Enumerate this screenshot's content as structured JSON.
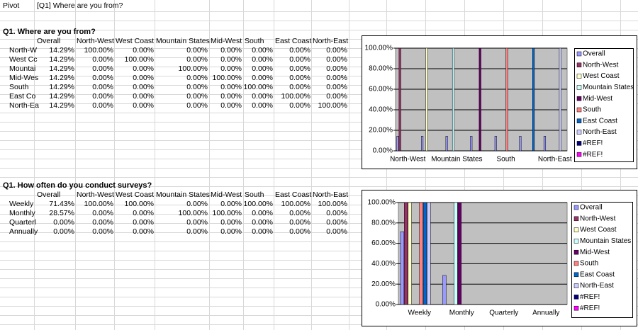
{
  "header": {
    "cells": [
      "Pivot",
      "[Q1] Where are you from?"
    ]
  },
  "tables": [
    {
      "title": "Q1. Where are you from?",
      "columns": [
        "Overall",
        "North-West",
        "West Coast",
        "Mountain States",
        "Mid-West",
        "South",
        "East Coast",
        "North-East"
      ],
      "rows": [
        {
          "label": "North-W",
          "cells": [
            "14.29%",
            "100.00%",
            "0.00%",
            "0.00%",
            "0.00%",
            "0.00%",
            "0.00%",
            "0.00%"
          ]
        },
        {
          "label": "West Cc",
          "cells": [
            "14.29%",
            "0.00%",
            "100.00%",
            "0.00%",
            "0.00%",
            "0.00%",
            "0.00%",
            "0.00%"
          ]
        },
        {
          "label": "Mountai",
          "cells": [
            "14.29%",
            "0.00%",
            "0.00%",
            "100.00%",
            "0.00%",
            "0.00%",
            "0.00%",
            "0.00%"
          ]
        },
        {
          "label": "Mid-Wes",
          "cells": [
            "14.29%",
            "0.00%",
            "0.00%",
            "0.00%",
            "100.00%",
            "0.00%",
            "0.00%",
            "0.00%"
          ]
        },
        {
          "label": "South",
          "cells": [
            "14.29%",
            "0.00%",
            "0.00%",
            "0.00%",
            "0.00%",
            "100.00%",
            "0.00%",
            "0.00%"
          ]
        },
        {
          "label": "East Co",
          "cells": [
            "14.29%",
            "0.00%",
            "0.00%",
            "0.00%",
            "0.00%",
            "0.00%",
            "100.00%",
            "0.00%"
          ]
        },
        {
          "label": "North-Ea",
          "cells": [
            "14.29%",
            "0.00%",
            "0.00%",
            "0.00%",
            "0.00%",
            "0.00%",
            "0.00%",
            "100.00%"
          ]
        }
      ]
    },
    {
      "title": "Q1. How often do you conduct surveys?",
      "columns": [
        "Overall",
        "North-West",
        "West Coast",
        "Mountain States",
        "Mid-West",
        "South",
        "East Coast",
        "North-East"
      ],
      "rows": [
        {
          "label": "Weekly",
          "cells": [
            "71.43%",
            "100.00%",
            "100.00%",
            "0.00%",
            "0.00%",
            "100.00%",
            "100.00%",
            "100.00%"
          ]
        },
        {
          "label": "Monthly",
          "cells": [
            "28.57%",
            "0.00%",
            "0.00%",
            "100.00%",
            "100.00%",
            "0.00%",
            "0.00%",
            "0.00%"
          ]
        },
        {
          "label": "Quarterl",
          "cells": [
            "0.00%",
            "0.00%",
            "0.00%",
            "0.00%",
            "0.00%",
            "0.00%",
            "0.00%",
            "0.00%"
          ]
        },
        {
          "label": "Annually",
          "cells": [
            "0.00%",
            "0.00%",
            "0.00%",
            "0.00%",
            "0.00%",
            "0.00%",
            "0.00%",
            "0.00%"
          ]
        }
      ]
    }
  ],
  "chart_data": [
    {
      "type": "bar",
      "categories": [
        "North-West",
        null,
        "Mountain States",
        null,
        "South",
        null,
        "North-East"
      ],
      "ylim": [
        0,
        100
      ],
      "yticks": [
        {
          "value": 0,
          "label": "0.00%"
        },
        {
          "value": 20,
          "label": "20.00%"
        },
        {
          "value": 40,
          "label": "40.00%"
        },
        {
          "value": 60,
          "label": "60.00%"
        },
        {
          "value": 80,
          "label": "80.00%"
        },
        {
          "value": 100,
          "label": "100.00%"
        }
      ],
      "grid": true,
      "legend": "right",
      "series": [
        {
          "name": "Overall",
          "color": "#9999ff",
          "values": [
            14.29,
            14.29,
            14.29,
            14.29,
            14.29,
            14.29,
            14.29
          ]
        },
        {
          "name": "North-West",
          "color": "#993366",
          "values": [
            100,
            0,
            0,
            0,
            0,
            0,
            0
          ]
        },
        {
          "name": "West Coast",
          "color": "#ffffcc",
          "values": [
            0,
            100,
            0,
            0,
            0,
            0,
            0
          ]
        },
        {
          "name": "Mountain States",
          "color": "#ccffff",
          "values": [
            0,
            0,
            100,
            0,
            0,
            0,
            0
          ]
        },
        {
          "name": "Mid-West",
          "color": "#660066",
          "values": [
            0,
            0,
            0,
            100,
            0,
            0,
            0
          ]
        },
        {
          "name": "South",
          "color": "#ff8080",
          "values": [
            0,
            0,
            0,
            0,
            100,
            0,
            0
          ]
        },
        {
          "name": "East Coast",
          "color": "#0066cc",
          "values": [
            0,
            0,
            0,
            0,
            0,
            100,
            0
          ]
        },
        {
          "name": "North-East",
          "color": "#ccccff",
          "values": [
            0,
            0,
            0,
            0,
            0,
            0,
            100
          ]
        },
        {
          "name": "#REF!",
          "color": "#000080",
          "values": [
            null,
            null,
            null,
            null,
            null,
            null,
            null
          ]
        },
        {
          "name": "#REF!",
          "color": "#ff00ff",
          "values": [
            null,
            null,
            null,
            null,
            null,
            null,
            null
          ]
        }
      ]
    },
    {
      "type": "bar",
      "categories": [
        "Weekly",
        "Monthly",
        "Quarterly",
        "Annually"
      ],
      "ylim": [
        0,
        100
      ],
      "yticks": [
        {
          "value": 0,
          "label": "0.00%"
        },
        {
          "value": 20,
          "label": "20.00%"
        },
        {
          "value": 40,
          "label": "40.00%"
        },
        {
          "value": 60,
          "label": "60.00%"
        },
        {
          "value": 80,
          "label": "80.00%"
        },
        {
          "value": 100,
          "label": "100.00%"
        }
      ],
      "grid": true,
      "legend": "right",
      "series": [
        {
          "name": "Overall",
          "color": "#9999ff",
          "values": [
            71.43,
            28.57,
            0,
            0
          ]
        },
        {
          "name": "North-West",
          "color": "#993366",
          "values": [
            100,
            0,
            0,
            0
          ]
        },
        {
          "name": "West Coast",
          "color": "#ffffcc",
          "values": [
            100,
            0,
            0,
            0
          ]
        },
        {
          "name": "Mountain States",
          "color": "#ccffff",
          "values": [
            0,
            100,
            0,
            0
          ]
        },
        {
          "name": "Mid-West",
          "color": "#660066",
          "values": [
            0,
            100,
            0,
            0
          ]
        },
        {
          "name": "South",
          "color": "#ff8080",
          "values": [
            100,
            0,
            0,
            0
          ]
        },
        {
          "name": "East Coast",
          "color": "#0066cc",
          "values": [
            100,
            0,
            0,
            0
          ]
        },
        {
          "name": "North-East",
          "color": "#ccccff",
          "values": [
            100,
            0,
            0,
            0
          ]
        },
        {
          "name": "#REF!",
          "color": "#000080",
          "values": [
            null,
            null,
            null,
            null
          ]
        },
        {
          "name": "#REF!",
          "color": "#ff00ff",
          "values": [
            null,
            null,
            null,
            null
          ]
        }
      ]
    }
  ]
}
